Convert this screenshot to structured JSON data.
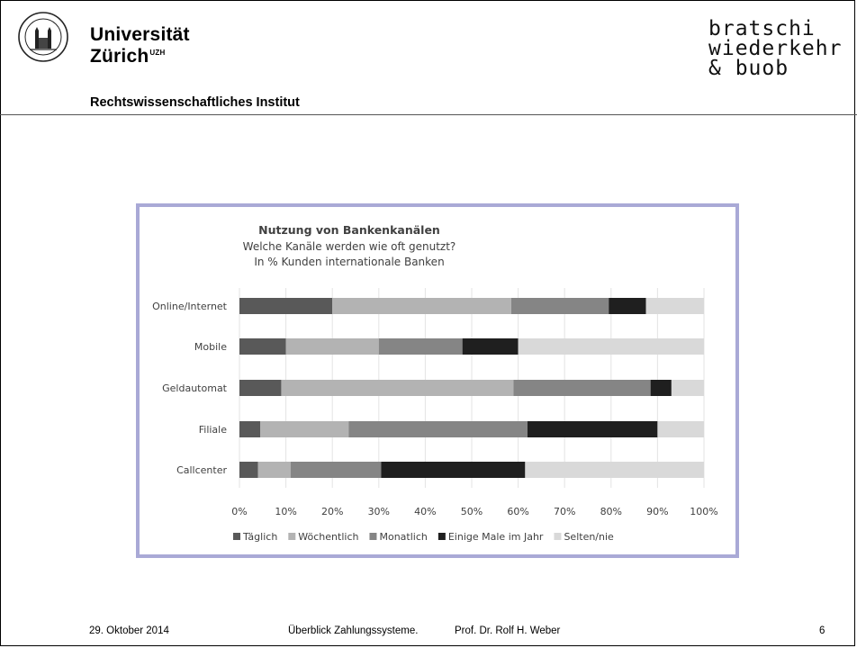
{
  "header": {
    "university_line1": "Universität",
    "university_line2": "Zürich",
    "university_sup": "UZH",
    "institute": "Rechtswissenschaftliches Institut",
    "brand_lines": [
      "bratschi",
      "wiederkehr",
      "& buob"
    ],
    "seal_icon": "university-seal-icon"
  },
  "chart_data": {
    "type": "bar",
    "orientation": "horizontal",
    "stacked": true,
    "title": "Nutzung von Bankenkanälen",
    "subtitle": "Welche Kanäle werden wie oft genutzt?",
    "subtitle2": "In % Kunden internationale Banken",
    "categories": [
      "Online/Internet",
      "Mobile",
      "Geldautomat",
      "Filiale",
      "Callcenter"
    ],
    "series": [
      {
        "name": "Täglich",
        "color": "#595959",
        "values": [
          20,
          10,
          9,
          4.5,
          4
        ]
      },
      {
        "name": "Wöchentlich",
        "color": "#b3b3b3",
        "values": [
          38.5,
          20,
          50,
          19,
          7
        ]
      },
      {
        "name": "Monatlich",
        "color": "#858585",
        "values": [
          21,
          18,
          29.5,
          38.5,
          19.5
        ]
      },
      {
        "name": "Einige Male im Jahr",
        "color": "#1f1f1f",
        "values": [
          8,
          12,
          4.5,
          28,
          31
        ]
      },
      {
        "name": "Selten/nie",
        "color": "#d9d9d9",
        "values": [
          12.5,
          40,
          7,
          10,
          38.5
        ]
      }
    ],
    "xlim": [
      0,
      100
    ],
    "xticks": [
      "0%",
      "10%",
      "20%",
      "30%",
      "40%",
      "50%",
      "60%",
      "70%",
      "80%",
      "90%",
      "100%"
    ],
    "grid": true,
    "legend_position": "bottom"
  },
  "footer": {
    "date": "29. Oktober 2014",
    "title": "Überblick Zahlungssysteme.",
    "author": "Prof. Dr. Rolf H. Weber",
    "page": "6"
  }
}
